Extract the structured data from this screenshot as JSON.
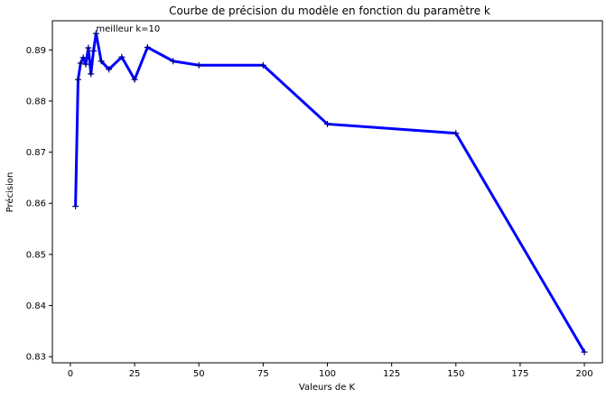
{
  "chart_data": {
    "type": "line",
    "title": "Courbe de précision du modèle en fonction du paramètre k",
    "xlabel": "Valeurs de K",
    "ylabel": "Précision",
    "xlim": [
      -7,
      207
    ],
    "ylim": [
      0.8288,
      0.8957
    ],
    "xticks": [
      0,
      25,
      50,
      75,
      100,
      125,
      150,
      175,
      200
    ],
    "xtick_labels": [
      "0",
      "25",
      "50",
      "75",
      "100",
      "125",
      "150",
      "175",
      "200"
    ],
    "yticks": [
      0.83,
      0.84,
      0.85,
      0.86,
      0.87,
      0.88,
      0.89
    ],
    "ytick_labels": [
      "0.83",
      "0.84",
      "0.85",
      "0.86",
      "0.87",
      "0.88",
      "0.89"
    ],
    "grid": false,
    "series": [
      {
        "color": "#0000ff",
        "marker": "+",
        "x": [
          2,
          3,
          4,
          5,
          6,
          7,
          8,
          9,
          10,
          12,
          15,
          20,
          25,
          30,
          40,
          50,
          75,
          100,
          150,
          200
        ],
        "y": [
          0.8594,
          0.8842,
          0.8874,
          0.8885,
          0.8872,
          0.8904,
          0.8853,
          0.8898,
          0.8932,
          0.8878,
          0.8862,
          0.8886,
          0.8842,
          0.8905,
          0.8878,
          0.887,
          0.887,
          0.8755,
          0.8737,
          0.8309
        ]
      }
    ],
    "annotations": [
      {
        "text": "meilleur k=10",
        "x": 10,
        "y": 0.8932
      }
    ]
  }
}
